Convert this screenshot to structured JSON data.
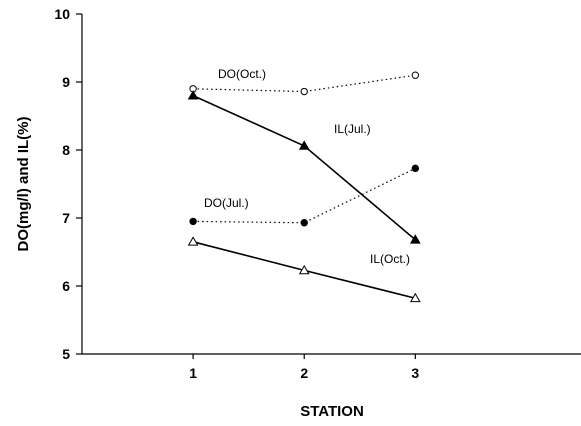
{
  "chart_data": {
    "type": "line",
    "xlabel": "STATION",
    "ylabel": "DO(mg/l) and IL(%)",
    "xlim": [
      0,
      4.5
    ],
    "ylim": [
      5,
      10
    ],
    "x_ticks": [
      "1",
      "2",
      "3"
    ],
    "y_ticks": [
      "5",
      "6",
      "7",
      "8",
      "9",
      "10"
    ],
    "grid": false,
    "legend": "none",
    "x": [
      1,
      2,
      3
    ],
    "series": [
      {
        "name": "DO(Oct.)",
        "values": [
          8.9,
          8.86,
          9.1
        ],
        "line": "dotted",
        "marker": "circle-open",
        "color": "#000000"
      },
      {
        "name": "IL(Jul.)",
        "values": [
          8.8,
          8.06,
          6.68
        ],
        "line": "solid",
        "marker": "triangle-filled",
        "color": "#000000"
      },
      {
        "name": "DO(Jul.)",
        "values": [
          6.95,
          6.93,
          7.73
        ],
        "line": "dotted",
        "marker": "circle-filled",
        "color": "#000000"
      },
      {
        "name": "IL(Oct.)",
        "values": [
          6.65,
          6.23,
          5.82
        ],
        "line": "solid",
        "marker": "triangle-open",
        "color": "#000000"
      }
    ]
  }
}
